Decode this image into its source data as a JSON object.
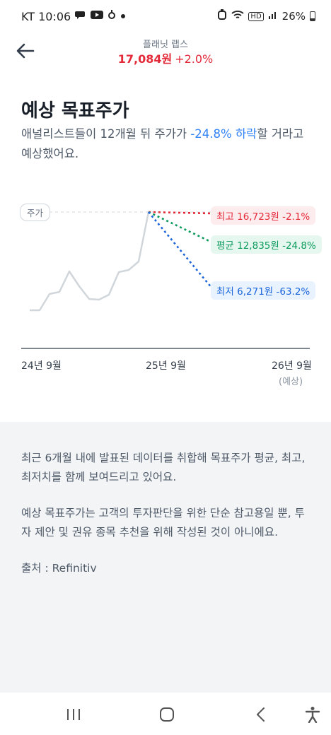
{
  "status": {
    "carrier_time": "KT 10:06",
    "icons": [
      "chat-icon",
      "youtube-icon",
      "app-icon",
      "dot-icon"
    ],
    "hd_label": "HD",
    "battery": "26%"
  },
  "header": {
    "stock_name": "플래닛 랩스",
    "price": "17,084원",
    "change": "+2.0%",
    "colors": {
      "up": "#e42939"
    }
  },
  "page": {
    "title": "예상 목표주가",
    "desc_prefix": "애널리스트들이 12개월 뒤 주가가 ",
    "desc_highlight": "-24.8% 하락",
    "desc_suffix": "할 거라고 예상했어요."
  },
  "chart": {
    "price_chip": "주가",
    "targets": {
      "high": "최고 16,723원 -2.1%",
      "avg": "평균 12,835원 -24.8%",
      "low": "최저 6,271원 -63.2%"
    },
    "x_labels": [
      "24년 9월",
      "25년 9월",
      "26년 9월"
    ],
    "x_sub": "(예상)",
    "colors": {
      "high": "#e42939",
      "avg": "#0a9a5c",
      "low": "#1b64da",
      "price_line": "#d1d6db"
    }
  },
  "info": {
    "para1": "최근 6개월 내에 발표된 데이터를 취합해 목표주가 평균, 최고, 최저치를 함께 보여드리고 있어요.",
    "para2": "예상 목표주가는 고객의 투자판단을 위한 단순 참고용일 뿐, 투자 제안 및 권유 종목 추천을 위해 작성된 것이 아니에요.",
    "source": "출처 : Refinitiv"
  },
  "nav": {
    "items": [
      "recents-icon",
      "home-icon",
      "back-icon",
      "accessibility-icon"
    ]
  }
}
